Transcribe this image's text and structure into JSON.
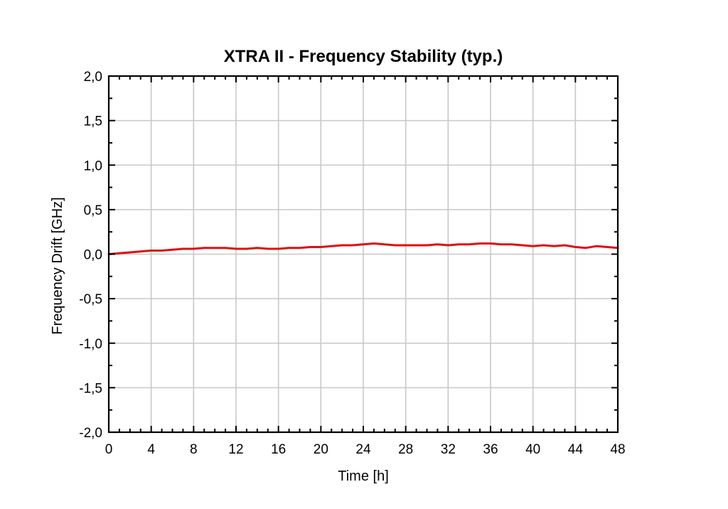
{
  "chart_data": {
    "type": "line",
    "title": "XTRA II - Frequency Stability (typ.)",
    "xlabel": "Time [h]",
    "ylabel": "Frequency Drift [GHz]",
    "xlim": [
      0,
      48
    ],
    "ylim": [
      -2.0,
      2.0
    ],
    "x_ticks": [
      0,
      4,
      8,
      12,
      16,
      20,
      24,
      28,
      32,
      36,
      40,
      44,
      48
    ],
    "x_tick_labels": [
      "0",
      "4",
      "8",
      "12",
      "16",
      "20",
      "24",
      "28",
      "32",
      "36",
      "40",
      "44",
      "48"
    ],
    "y_ticks": [
      2.0,
      1.5,
      1.0,
      0.5,
      0.0,
      -0.5,
      -1.0,
      -1.5,
      -2.0
    ],
    "y_tick_labels": [
      "2,0",
      "1,5",
      "1,0",
      "0,5",
      "0,0",
      "-0,5",
      "-1,0",
      "-1,5",
      "-2,0"
    ],
    "grid": true,
    "series": [
      {
        "color": "#dd1111",
        "x": [
          0,
          1,
          2,
          3,
          4,
          5,
          6,
          7,
          8,
          9,
          10,
          11,
          12,
          13,
          14,
          15,
          16,
          17,
          18,
          19,
          20,
          21,
          22,
          23,
          24,
          25,
          26,
          27,
          28,
          29,
          30,
          31,
          32,
          33,
          34,
          35,
          36,
          37,
          38,
          39,
          40,
          41,
          42,
          43,
          44,
          45,
          46,
          47,
          48
        ],
        "y": [
          0.0,
          0.01,
          0.02,
          0.03,
          0.04,
          0.04,
          0.05,
          0.06,
          0.06,
          0.07,
          0.07,
          0.07,
          0.06,
          0.06,
          0.07,
          0.06,
          0.06,
          0.07,
          0.07,
          0.08,
          0.08,
          0.09,
          0.1,
          0.1,
          0.11,
          0.12,
          0.11,
          0.1,
          0.1,
          0.1,
          0.1,
          0.11,
          0.1,
          0.11,
          0.11,
          0.12,
          0.12,
          0.11,
          0.11,
          0.1,
          0.09,
          0.1,
          0.09,
          0.1,
          0.08,
          0.07,
          0.09,
          0.08,
          0.07
        ]
      }
    ]
  }
}
